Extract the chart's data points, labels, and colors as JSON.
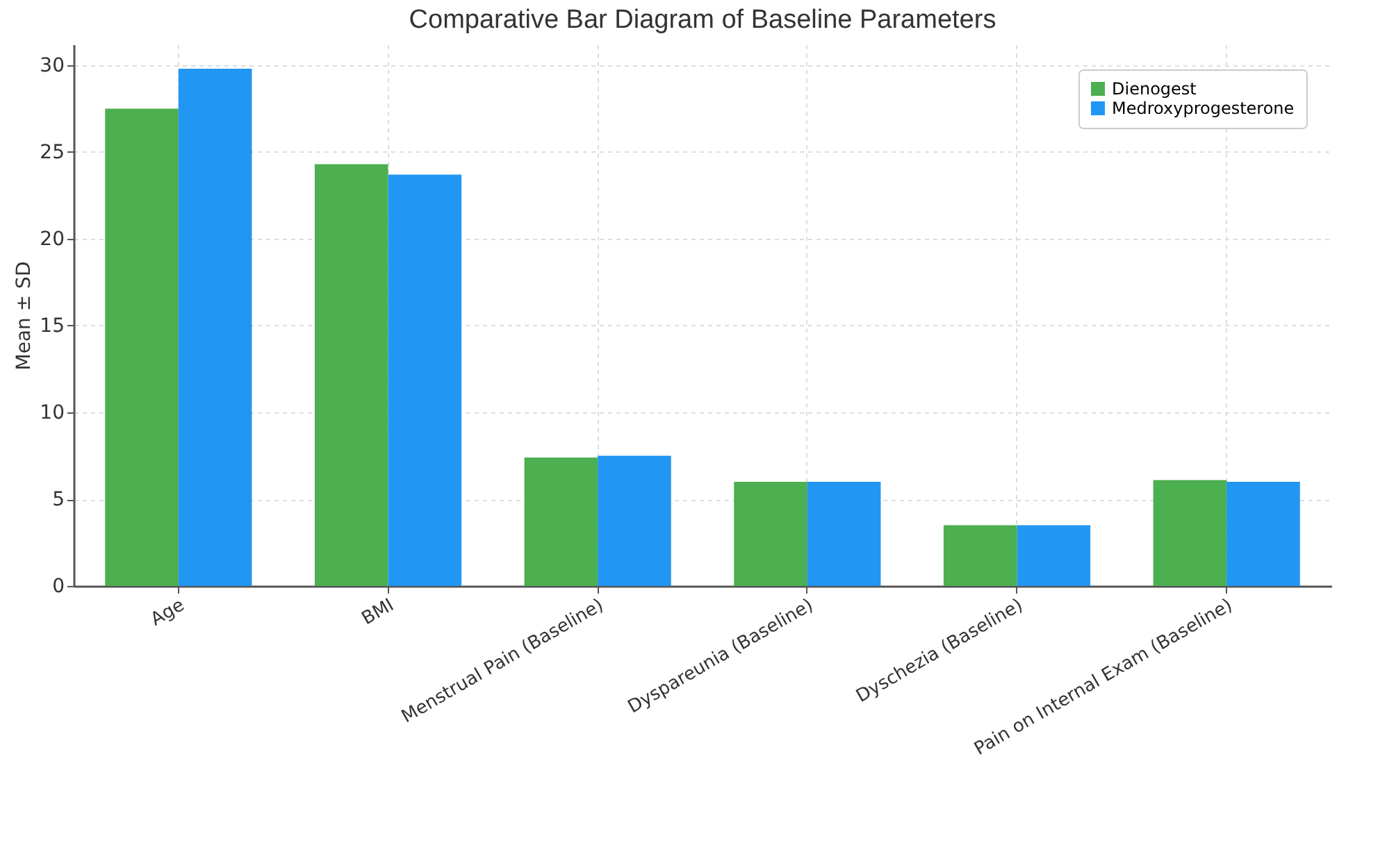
{
  "chart_data": {
    "type": "bar",
    "title": "Comparative Bar Diagram of Baseline Parameters",
    "ylabel": "Mean ± SD",
    "categories": [
      "Age",
      "BMI",
      "Menstrual Pain (Baseline)",
      "Dyspareunia (Baseline)",
      "Dyschezia (Baseline)",
      "Pain on Internal Exam (Baseline)"
    ],
    "series": [
      {
        "name": "Dienogest",
        "color": "#4caf50",
        "values": [
          27.5,
          24.3,
          7.4,
          6.0,
          3.5,
          6.1
        ]
      },
      {
        "name": "Medroxyprogesterone",
        "color": "#2196f3",
        "values": [
          29.8,
          23.7,
          7.5,
          6.0,
          3.5,
          6.0
        ]
      }
    ],
    "ylim": [
      0,
      31.2
    ],
    "yticks": [
      0,
      5,
      10,
      15,
      20,
      25,
      30
    ],
    "grid": true,
    "legend": "top right"
  }
}
